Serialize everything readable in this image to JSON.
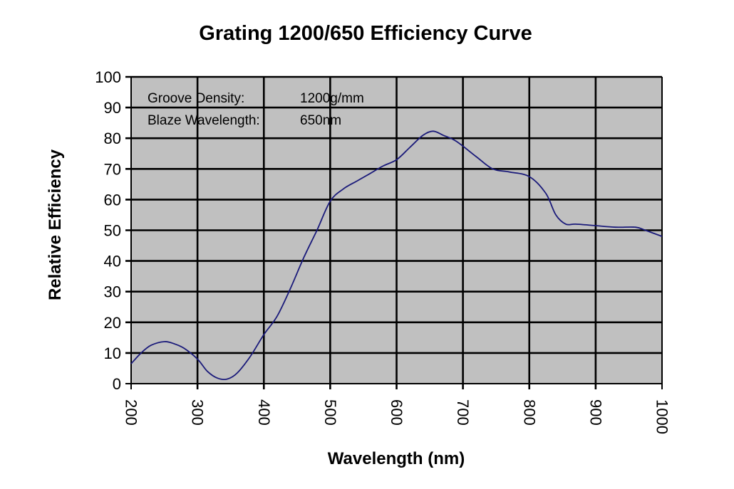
{
  "chart_data": {
    "type": "line",
    "title": "Grating 1200/650 Efficiency Curve",
    "xlabel": "Wavelength (nm)",
    "ylabel": "Relative Efficiency",
    "xlim": [
      200,
      1000
    ],
    "ylim": [
      0,
      100
    ],
    "xticks": [
      "200",
      "300",
      "400",
      "500",
      "600",
      "700",
      "800",
      "900",
      "1000"
    ],
    "yticks": [
      "0",
      "10",
      "20",
      "30",
      "40",
      "50",
      "60",
      "70",
      "80",
      "90",
      "100"
    ],
    "grid": true,
    "colors": {
      "plot_bg": "#c0c0c0",
      "line": "#1a1a7a",
      "grid": "#000000"
    },
    "annotations": {
      "groove_label": "Groove Density:",
      "groove_value": "1200g/mm",
      "blaze_label": "Blaze Wavelength:",
      "blaze_value": "650nm"
    },
    "series": [
      {
        "name": "Efficiency",
        "x": [
          200,
          215,
          230,
          250,
          265,
          280,
          300,
          315,
          330,
          345,
          360,
          380,
          400,
          420,
          440,
          460,
          480,
          500,
          520,
          540,
          560,
          580,
          600,
          620,
          640,
          655,
          670,
          690,
          720,
          745,
          770,
          800,
          825,
          840,
          855,
          870,
          900,
          930,
          960,
          975,
          1000
        ],
        "y": [
          6.5,
          10,
          12.5,
          13.7,
          13,
          11.5,
          8,
          4,
          1.8,
          1.5,
          3.5,
          9,
          16,
          22,
          31,
          41,
          50,
          59.5,
          63.5,
          66,
          68.5,
          71,
          73,
          77,
          81,
          82.3,
          81,
          79,
          74,
          70,
          69,
          67.5,
          62,
          55,
          52,
          52,
          51.5,
          51,
          51,
          50,
          48
        ]
      }
    ]
  }
}
